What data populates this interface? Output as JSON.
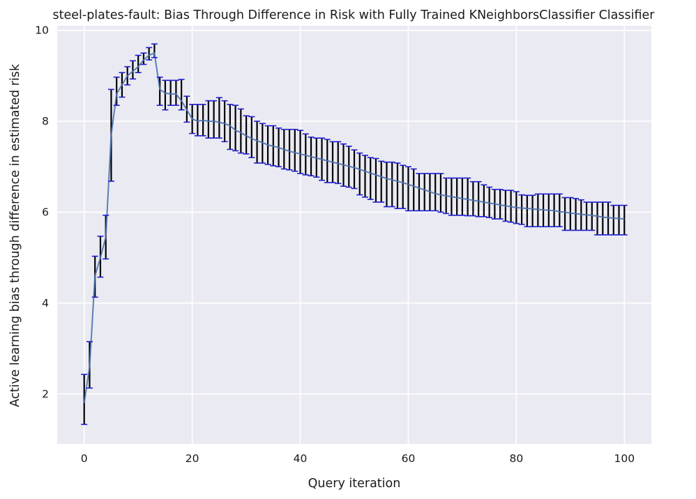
{
  "chart_data": {
    "type": "line",
    "title": "steel-plates-fault: Bias Through Difference in Risk with Fully Trained KNeighborsClassifier Classifier",
    "xlabel": "Query iteration",
    "ylabel": "Active learning bias through difference in estimated risk",
    "xlim": [
      -5,
      105
    ],
    "ylim": [
      0.9,
      10.1
    ],
    "xticks": [
      0,
      20,
      40,
      60,
      80,
      100
    ],
    "yticks": [
      2,
      4,
      6,
      8,
      10
    ],
    "grid": true,
    "legend": "none",
    "colors": {
      "background": "#eaeaf2",
      "grid": "#ffffff",
      "line": "#4c72b0",
      "errorbar": "#000000",
      "cap": "#1f1fd0"
    },
    "series": [
      {
        "error_bars": true,
        "x": [
          0,
          1,
          2,
          3,
          4,
          5,
          6,
          7,
          8,
          9,
          10,
          11,
          12,
          13,
          14,
          15,
          16,
          17,
          18,
          19,
          20,
          21,
          22,
          23,
          24,
          25,
          26,
          27,
          28,
          29,
          30,
          31,
          32,
          33,
          34,
          35,
          36,
          37,
          38,
          39,
          40,
          41,
          42,
          43,
          44,
          45,
          46,
          47,
          48,
          49,
          50,
          51,
          52,
          53,
          54,
          55,
          56,
          57,
          58,
          59,
          60,
          61,
          62,
          63,
          64,
          65,
          66,
          67,
          68,
          69,
          70,
          71,
          72,
          73,
          74,
          75,
          76,
          77,
          78,
          79,
          80,
          81,
          82,
          83,
          84,
          85,
          86,
          87,
          88,
          89,
          90,
          91,
          92,
          93,
          94,
          95,
          96,
          97,
          98,
          99,
          100
        ],
        "y": [
          1.8,
          2.6,
          4.6,
          5.0,
          5.45,
          7.7,
          8.6,
          8.8,
          9.0,
          9.1,
          9.2,
          9.35,
          9.45,
          9.5,
          8.7,
          8.62,
          8.6,
          8.6,
          8.45,
          8.25,
          8.05,
          8.0,
          8.02,
          8.0,
          8.0,
          7.98,
          7.95,
          7.9,
          7.8,
          7.75,
          7.68,
          7.62,
          7.57,
          7.53,
          7.48,
          7.45,
          7.42,
          7.38,
          7.34,
          7.31,
          7.28,
          7.25,
          7.22,
          7.19,
          7.16,
          7.13,
          7.1,
          7.07,
          7.04,
          7.01,
          6.98,
          6.94,
          6.9,
          6.86,
          6.82,
          6.78,
          6.74,
          6.71,
          6.68,
          6.65,
          6.61,
          6.57,
          6.53,
          6.49,
          6.45,
          6.41,
          6.38,
          6.36,
          6.34,
          6.32,
          6.3,
          6.28,
          6.26,
          6.24,
          6.22,
          6.2,
          6.18,
          6.16,
          6.14,
          6.12,
          6.1,
          6.09,
          6.08,
          6.07,
          6.06,
          6.05,
          6.04,
          6.03,
          6.01,
          6.0,
          5.98,
          5.97,
          5.95,
          5.94,
          5.93,
          5.91,
          5.89,
          5.88,
          5.87,
          5.86,
          5.85
        ],
        "lower": [
          1.33,
          2.13,
          4.13,
          4.57,
          4.97,
          6.68,
          8.35,
          8.53,
          8.8,
          8.93,
          9.07,
          9.25,
          9.35,
          9.4,
          8.35,
          8.25,
          8.35,
          8.35,
          8.25,
          7.98,
          7.73,
          7.68,
          7.68,
          7.63,
          7.63,
          7.63,
          7.55,
          7.38,
          7.35,
          7.3,
          7.28,
          7.2,
          7.08,
          7.08,
          7.05,
          7.02,
          7.0,
          6.95,
          6.93,
          6.9,
          6.85,
          6.82,
          6.8,
          6.77,
          6.7,
          6.65,
          6.65,
          6.63,
          6.57,
          6.55,
          6.52,
          6.38,
          6.33,
          6.28,
          6.22,
          6.22,
          6.12,
          6.12,
          6.08,
          6.08,
          6.03,
          6.03,
          6.03,
          6.03,
          6.03,
          6.03,
          6.0,
          5.97,
          5.93,
          5.93,
          5.93,
          5.92,
          5.92,
          5.9,
          5.9,
          5.88,
          5.85,
          5.85,
          5.8,
          5.78,
          5.75,
          5.73,
          5.68,
          5.68,
          5.68,
          5.68,
          5.68,
          5.68,
          5.68,
          5.6,
          5.6,
          5.6,
          5.6,
          5.6,
          5.6,
          5.5,
          5.5,
          5.5,
          5.5,
          5.5,
          5.5
        ],
        "upper": [
          2.43,
          3.15,
          5.03,
          5.47,
          5.93,
          8.7,
          8.97,
          9.07,
          9.2,
          9.33,
          9.45,
          9.5,
          9.62,
          9.7,
          8.97,
          8.9,
          8.9,
          8.9,
          8.92,
          8.55,
          8.37,
          8.37,
          8.37,
          8.45,
          8.45,
          8.52,
          8.45,
          8.37,
          8.35,
          8.27,
          8.12,
          8.1,
          8.0,
          7.95,
          7.9,
          7.9,
          7.85,
          7.82,
          7.82,
          7.82,
          7.8,
          7.72,
          7.65,
          7.63,
          7.63,
          7.6,
          7.55,
          7.55,
          7.5,
          7.45,
          7.37,
          7.3,
          7.25,
          7.2,
          7.18,
          7.12,
          7.1,
          7.1,
          7.08,
          7.03,
          7.0,
          6.95,
          6.85,
          6.85,
          6.85,
          6.85,
          6.85,
          6.75,
          6.75,
          6.75,
          6.75,
          6.75,
          6.67,
          6.67,
          6.6,
          6.55,
          6.5,
          6.5,
          6.48,
          6.48,
          6.45,
          6.38,
          6.37,
          6.37,
          6.4,
          6.4,
          6.4,
          6.4,
          6.4,
          6.32,
          6.32,
          6.3,
          6.27,
          6.22,
          6.22,
          6.22,
          6.22,
          6.22,
          6.15,
          6.15,
          6.15
        ]
      }
    ]
  }
}
